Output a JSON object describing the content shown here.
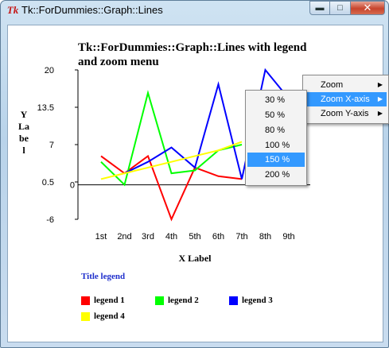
{
  "window": {
    "title": "Tk::ForDummies::Graph::Lines",
    "app_icon": "Tk",
    "minimize_icon": "minimize-icon",
    "maximize_icon": "maximize-icon",
    "close_icon": "close-icon"
  },
  "chart": {
    "title": "Tk::ForDummies::Graph::Lines with legend and zoom menu",
    "ylabel": "YLabel",
    "xlabel": "X Label"
  },
  "chart_data": {
    "type": "line",
    "title": "Tk::ForDummies::Graph::Lines with legend and zoom menu",
    "xlabel": "X Label",
    "ylabel": "YLabel",
    "categories": [
      "1st",
      "2nd",
      "3rd",
      "4th",
      "5th",
      "6th",
      "7th",
      "8th",
      "9th"
    ],
    "y_ticks": [
      "20",
      "13.5",
      "7",
      "0.5",
      "-6"
    ],
    "y_zero_label": "0",
    "ylim": [
      -6,
      20
    ],
    "series": [
      {
        "name": "legend 1",
        "color": "#ff0000",
        "values": [
          5,
          2,
          5,
          -6,
          3,
          1.5,
          1,
          null,
          null
        ]
      },
      {
        "name": "legend 2",
        "color": "#00ff00",
        "values": [
          4,
          0,
          16,
          2,
          2.5,
          6,
          7,
          null,
          null
        ]
      },
      {
        "name": "legend 3",
        "color": "#0000ff",
        "values": [
          null,
          2,
          4,
          6.5,
          3,
          17.5,
          1,
          20,
          15
        ]
      },
      {
        "name": "legend 4",
        "color": "#ffff00",
        "values": [
          1,
          2,
          3,
          4,
          5,
          6,
          7.5,
          null,
          null
        ]
      }
    ],
    "legend": {
      "title": "Title legend",
      "placement": "bottom"
    },
    "grid": false
  },
  "context_menu": {
    "items": [
      {
        "label": "Zoom",
        "has_submenu": true
      },
      {
        "label": "Zoom X-axis",
        "has_submenu": true,
        "selected": true
      },
      {
        "label": "Zoom Y-axis",
        "has_submenu": true
      }
    ]
  },
  "zoom_submenu": {
    "items": [
      {
        "label": "30 %"
      },
      {
        "label": "50 %"
      },
      {
        "label": "80 %"
      },
      {
        "label": "100 %"
      },
      {
        "label": "150 %",
        "selected": true
      },
      {
        "label": "200 %"
      }
    ]
  }
}
